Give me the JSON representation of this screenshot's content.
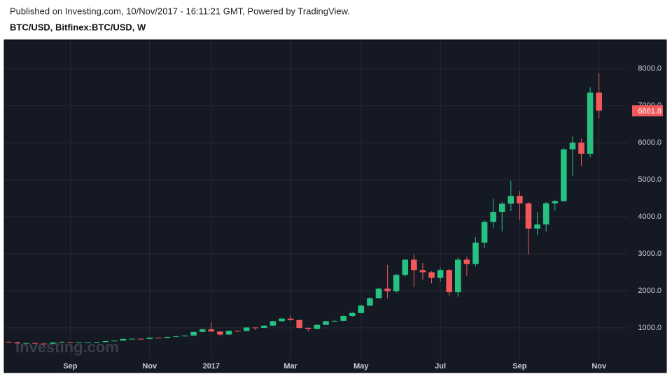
{
  "header": {
    "published": "Published on Investing.com, 10/Nov/2017 - 16:11:21 GMT, Powered by TradingView."
  },
  "chart_data": {
    "type": "candlestick",
    "title": "BTC/USD, Bitfinex:BTC/USD, W",
    "watermark": "Investing.com",
    "categories": [
      null,
      null,
      null,
      null,
      null,
      null,
      null,
      "Sep",
      null,
      null,
      null,
      null,
      null,
      null,
      null,
      null,
      "Nov",
      null,
      null,
      null,
      null,
      null,
      null,
      "2017",
      null,
      null,
      null,
      null,
      null,
      null,
      null,
      null,
      "Mar",
      null,
      null,
      null,
      null,
      null,
      null,
      null,
      "May",
      null,
      null,
      null,
      null,
      null,
      null,
      null,
      null,
      "Jul",
      null,
      null,
      null,
      null,
      null,
      null,
      null,
      null,
      "Sep",
      null,
      null,
      null,
      null,
      null,
      null,
      null,
      null,
      "Nov"
    ],
    "open": [
      624,
      607,
      580,
      590,
      575,
      570,
      605,
      610,
      600,
      606,
      612,
      616,
      640,
      655,
      700,
      705,
      700,
      735,
      730,
      755,
      770,
      790,
      890,
      960,
      900,
      820,
      920,
      915,
      1010,
      1000,
      1060,
      1180,
      1250,
      1210,
      1000,
      970,
      1080,
      1180,
      1190,
      1320,
      1400,
      1600,
      1800,
      2060,
      1990,
      2430,
      2840,
      2560,
      2500,
      2350,
      2560,
      1960,
      2840,
      2720,
      3300,
      3860,
      4130,
      4350,
      4560,
      4360,
      3680,
      3790,
      4360,
      4420,
      5820,
      6000,
      5700,
      7350
    ],
    "high": [
      630,
      612,
      595,
      595,
      580,
      610,
      615,
      612,
      610,
      615,
      620,
      645,
      660,
      705,
      710,
      710,
      740,
      740,
      760,
      775,
      795,
      895,
      975,
      1150,
      905,
      925,
      925,
      1015,
      1015,
      1070,
      1190,
      1270,
      1330,
      1220,
      1010,
      1090,
      1190,
      1215,
      1330,
      1420,
      1620,
      1830,
      2080,
      2700,
      2450,
      2850,
      2980,
      2750,
      2530,
      2620,
      2590,
      2900,
      2920,
      3450,
      3900,
      4480,
      4400,
      4970,
      4700,
      4400,
      4120,
      4400,
      4460,
      5860,
      6170,
      6100,
      7500,
      7880
    ],
    "low": [
      600,
      575,
      575,
      570,
      560,
      565,
      600,
      595,
      598,
      603,
      608,
      612,
      635,
      650,
      695,
      695,
      695,
      725,
      725,
      750,
      765,
      785,
      880,
      890,
      780,
      810,
      890,
      900,
      940,
      990,
      1050,
      1170,
      1190,
      980,
      900,
      960,
      1070,
      1160,
      1180,
      1300,
      1390,
      1580,
      1790,
      1800,
      1950,
      2380,
      2100,
      2300,
      2200,
      2250,
      1850,
      1840,
      2400,
      2650,
      3150,
      3700,
      3600,
      4150,
      3900,
      2980,
      3500,
      3600,
      4160,
      4400,
      5110,
      5370,
      5600,
      6650
    ],
    "close": [
      607,
      580,
      590,
      575,
      570,
      605,
      610,
      600,
      606,
      612,
      616,
      640,
      655,
      700,
      705,
      700,
      735,
      730,
      755,
      770,
      790,
      890,
      960,
      900,
      820,
      920,
      915,
      1010,
      1000,
      1060,
      1180,
      1250,
      1210,
      1000,
      970,
      1080,
      1180,
      1190,
      1320,
      1400,
      1600,
      1800,
      2060,
      1990,
      2430,
      2840,
      2560,
      2500,
      2350,
      2560,
      1960,
      2840,
      2720,
      3300,
      3860,
      4130,
      4350,
      4560,
      4360,
      3680,
      3790,
      4360,
      4420,
      5820,
      6000,
      5700,
      7350,
      6861.8
    ],
    "up_color": "#26c281",
    "down_color": "#f0585a",
    "ylim": [
      -190,
      8775
    ],
    "yticks": [
      {
        "value": 1000,
        "label": "1000.0"
      },
      {
        "value": 2000,
        "label": "2000.0"
      },
      {
        "value": 3000,
        "label": "3000.0"
      },
      {
        "value": 4000,
        "label": "4000.0"
      },
      {
        "value": 5000,
        "label": "5000.0"
      },
      {
        "value": 6000,
        "label": "6000.0"
      },
      {
        "value": 7000,
        "label": "7000.0"
      },
      {
        "value": 8000,
        "label": "8000.0"
      }
    ],
    "grid": true
  }
}
